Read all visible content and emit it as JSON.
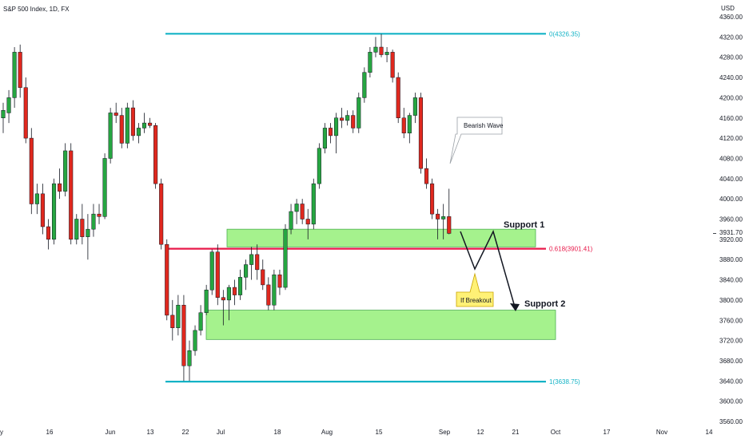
{
  "chart_data": {
    "type": "candlestick",
    "title": "S&P 500 Index, 1D, FX",
    "currency": "USD",
    "ylim": [
      3560,
      4360
    ],
    "y_ticks": [
      4360,
      4320,
      4280,
      4240,
      4200,
      4160,
      4120,
      4080,
      4040,
      4000,
      3960,
      3920,
      3880,
      3840,
      3800,
      3760,
      3720,
      3680,
      3640,
      3600,
      3560
    ],
    "x_ticks": [
      "y",
      "16",
      "Jun",
      "13",
      "22",
      "Jul",
      "18",
      "Aug",
      "15",
      "Sep",
      "12",
      "21",
      "Oct",
      "17",
      "Nov",
      "14"
    ],
    "current_price": "3931.70",
    "colors": {
      "up": "#26a641",
      "down": "#e0281e",
      "fib": "#13b3c6",
      "fib_mid": "#e8194a",
      "zone_fill": "#a5f28d",
      "zone_stroke": "#4caf50"
    },
    "candles": [
      {
        "o": 4160,
        "h": 4190,
        "l": 4130,
        "c": 4175
      },
      {
        "o": 4170,
        "h": 4215,
        "l": 4150,
        "c": 4200
      },
      {
        "o": 4200,
        "h": 4300,
        "l": 4180,
        "c": 4290
      },
      {
        "o": 4290,
        "h": 4305,
        "l": 4200,
        "c": 4220
      },
      {
        "o": 4220,
        "h": 4240,
        "l": 4110,
        "c": 4120
      },
      {
        "o": 4120,
        "h": 4140,
        "l": 3970,
        "c": 3990
      },
      {
        "o": 3990,
        "h": 4030,
        "l": 3970,
        "c": 4010
      },
      {
        "o": 4010,
        "h": 4030,
        "l": 3930,
        "c": 3945
      },
      {
        "o": 3945,
        "h": 3960,
        "l": 3900,
        "c": 3920
      },
      {
        "o": 3920,
        "h": 4040,
        "l": 3910,
        "c": 4030
      },
      {
        "o": 4030,
        "h": 4060,
        "l": 4000,
        "c": 4015
      },
      {
        "o": 4015,
        "h": 4110,
        "l": 4005,
        "c": 4095
      },
      {
        "o": 4095,
        "h": 4110,
        "l": 3910,
        "c": 3920
      },
      {
        "o": 3920,
        "h": 3970,
        "l": 3910,
        "c": 3960
      },
      {
        "o": 3960,
        "h": 3990,
        "l": 3910,
        "c": 3925
      },
      {
        "o": 3925,
        "h": 3970,
        "l": 3880,
        "c": 3940
      },
      {
        "o": 3940,
        "h": 3990,
        "l": 3925,
        "c": 3970
      },
      {
        "o": 3970,
        "h": 3990,
        "l": 3950,
        "c": 3965
      },
      {
        "o": 3965,
        "h": 4090,
        "l": 3960,
        "c": 4080
      },
      {
        "o": 4080,
        "h": 4180,
        "l": 4070,
        "c": 4170
      },
      {
        "o": 4170,
        "h": 4190,
        "l": 4150,
        "c": 4165
      },
      {
        "o": 4165,
        "h": 4180,
        "l": 4100,
        "c": 4110
      },
      {
        "o": 4110,
        "h": 4190,
        "l": 4100,
        "c": 4180
      },
      {
        "o": 4180,
        "h": 4195,
        "l": 4115,
        "c": 4125
      },
      {
        "o": 4125,
        "h": 4150,
        "l": 4110,
        "c": 4140
      },
      {
        "o": 4140,
        "h": 4170,
        "l": 4130,
        "c": 4150
      },
      {
        "o": 4150,
        "h": 4160,
        "l": 4140,
        "c": 4145
      },
      {
        "o": 4145,
        "h": 4150,
        "l": 4020,
        "c": 4030
      },
      {
        "o": 4030,
        "h": 4040,
        "l": 3900,
        "c": 3910
      },
      {
        "o": 3910,
        "h": 3920,
        "l": 3760,
        "c": 3770
      },
      {
        "o": 3770,
        "h": 3800,
        "l": 3720,
        "c": 3745
      },
      {
        "o": 3745,
        "h": 3810,
        "l": 3730,
        "c": 3790
      },
      {
        "o": 3790,
        "h": 3810,
        "l": 3640,
        "c": 3670
      },
      {
        "o": 3670,
        "h": 3720,
        "l": 3640,
        "c": 3700
      },
      {
        "o": 3700,
        "h": 3750,
        "l": 3690,
        "c": 3740
      },
      {
        "o": 3740,
        "h": 3790,
        "l": 3730,
        "c": 3775
      },
      {
        "o": 3775,
        "h": 3830,
        "l": 3770,
        "c": 3820
      },
      {
        "o": 3820,
        "h": 3900,
        "l": 3810,
        "c": 3895
      },
      {
        "o": 3895,
        "h": 3910,
        "l": 3790,
        "c": 3805
      },
      {
        "o": 3805,
        "h": 3820,
        "l": 3750,
        "c": 3800
      },
      {
        "o": 3800,
        "h": 3830,
        "l": 3760,
        "c": 3825
      },
      {
        "o": 3825,
        "h": 3840,
        "l": 3790,
        "c": 3810
      },
      {
        "o": 3810,
        "h": 3860,
        "l": 3800,
        "c": 3845
      },
      {
        "o": 3845,
        "h": 3880,
        "l": 3820,
        "c": 3870
      },
      {
        "o": 3870,
        "h": 3905,
        "l": 3840,
        "c": 3890
      },
      {
        "o": 3890,
        "h": 3910,
        "l": 3840,
        "c": 3860
      },
      {
        "o": 3860,
        "h": 3880,
        "l": 3820,
        "c": 3830
      },
      {
        "o": 3830,
        "h": 3845,
        "l": 3780,
        "c": 3790
      },
      {
        "o": 3790,
        "h": 3860,
        "l": 3780,
        "c": 3850
      },
      {
        "o": 3850,
        "h": 3860,
        "l": 3810,
        "c": 3825
      },
      {
        "o": 3825,
        "h": 3950,
        "l": 3820,
        "c": 3940
      },
      {
        "o": 3940,
        "h": 3990,
        "l": 3930,
        "c": 3975
      },
      {
        "o": 3975,
        "h": 4000,
        "l": 3950,
        "c": 3990
      },
      {
        "o": 3990,
        "h": 4000,
        "l": 3950,
        "c": 3960
      },
      {
        "o": 3960,
        "h": 3980,
        "l": 3920,
        "c": 3950
      },
      {
        "o": 3950,
        "h": 4040,
        "l": 3940,
        "c": 4030
      },
      {
        "o": 4030,
        "h": 4110,
        "l": 4020,
        "c": 4100
      },
      {
        "o": 4100,
        "h": 4150,
        "l": 4090,
        "c": 4140
      },
      {
        "o": 4140,
        "h": 4150,
        "l": 4110,
        "c": 4125
      },
      {
        "o": 4125,
        "h": 4170,
        "l": 4090,
        "c": 4160
      },
      {
        "o": 4160,
        "h": 4180,
        "l": 4140,
        "c": 4155
      },
      {
        "o": 4155,
        "h": 4175,
        "l": 4145,
        "c": 4165
      },
      {
        "o": 4165,
        "h": 4175,
        "l": 4130,
        "c": 4140
      },
      {
        "o": 4140,
        "h": 4210,
        "l": 4130,
        "c": 4200
      },
      {
        "o": 4200,
        "h": 4260,
        "l": 4190,
        "c": 4250
      },
      {
        "o": 4250,
        "h": 4300,
        "l": 4240,
        "c": 4290
      },
      {
        "o": 4290,
        "h": 4320,
        "l": 4280,
        "c": 4300
      },
      {
        "o": 4300,
        "h": 4326,
        "l": 4280,
        "c": 4285
      },
      {
        "o": 4285,
        "h": 4300,
        "l": 4270,
        "c": 4290
      },
      {
        "o": 4290,
        "h": 4295,
        "l": 4230,
        "c": 4240
      },
      {
        "o": 4240,
        "h": 4250,
        "l": 4150,
        "c": 4160
      },
      {
        "o": 4160,
        "h": 4180,
        "l": 4120,
        "c": 4130
      },
      {
        "o": 4130,
        "h": 4170,
        "l": 4110,
        "c": 4165
      },
      {
        "o": 4165,
        "h": 4210,
        "l": 4150,
        "c": 4200
      },
      {
        "o": 4200,
        "h": 4210,
        "l": 4050,
        "c": 4060
      },
      {
        "o": 4060,
        "h": 4080,
        "l": 4020,
        "c": 4030
      },
      {
        "o": 4030,
        "h": 4040,
        "l": 3960,
        "c": 3970
      },
      {
        "o": 3970,
        "h": 3980,
        "l": 3920,
        "c": 3960
      },
      {
        "o": 3960,
        "h": 3990,
        "l": 3920,
        "c": 3965
      },
      {
        "o": 3965,
        "h": 4020,
        "l": 3930,
        "c": 3931.7
      }
    ],
    "annotations": {
      "fib_top": {
        "price": 4326.35,
        "label": "0(4326.35)"
      },
      "fib_mid": {
        "price": 3901.41,
        "label": "0.618(3901.41)"
      },
      "fib_bottom": {
        "price": 3638.75,
        "label": "1(3638.75)"
      },
      "support_1": {
        "label": "Support 1",
        "price_top": 3940,
        "price_bottom": 3905
      },
      "support_2": {
        "label": "Support 2",
        "price_top": 3780,
        "price_bottom": 3722
      },
      "bearish_wave_callout": "Bearish Wave",
      "breakout_callout": "If Breakout"
    }
  }
}
